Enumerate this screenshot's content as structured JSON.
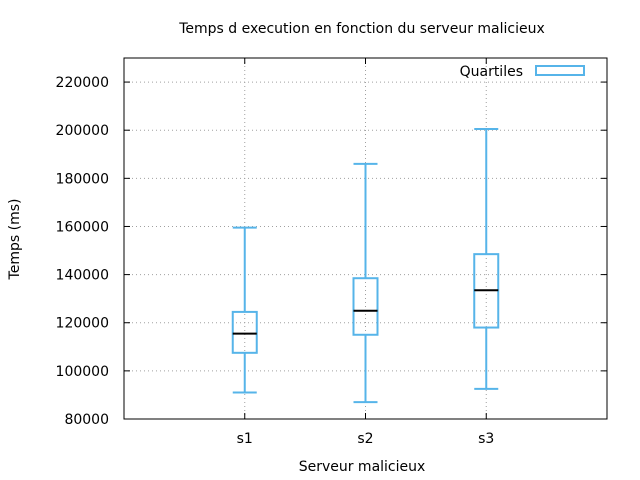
{
  "chart_data": {
    "type": "box",
    "title": "Temps d execution en fonction du serveur malicieux",
    "xlabel": "Serveur malicieux",
    "ylabel": "Temps (ms)",
    "ylim": [
      80000,
      230000
    ],
    "yticks": [
      80000,
      100000,
      120000,
      140000,
      160000,
      180000,
      200000,
      220000
    ],
    "xlim": [
      0,
      4
    ],
    "grid": true,
    "legend": {
      "position": "top-right",
      "entries": [
        "Quartiles"
      ]
    },
    "categories": [
      "s1",
      "s2",
      "s3"
    ],
    "series": [
      {
        "name": "Quartiles",
        "color": "#56b4e9",
        "boxes": [
          {
            "category": "s1",
            "min": 91000,
            "q1": 107500,
            "median": 115500,
            "q3": 124500,
            "max": 159500
          },
          {
            "category": "s2",
            "min": 87000,
            "q1": 115000,
            "median": 125000,
            "q3": 138500,
            "max": 186000
          },
          {
            "category": "s3",
            "min": 92500,
            "q1": 118000,
            "median": 133500,
            "q3": 148500,
            "max": 200500
          }
        ]
      }
    ]
  }
}
